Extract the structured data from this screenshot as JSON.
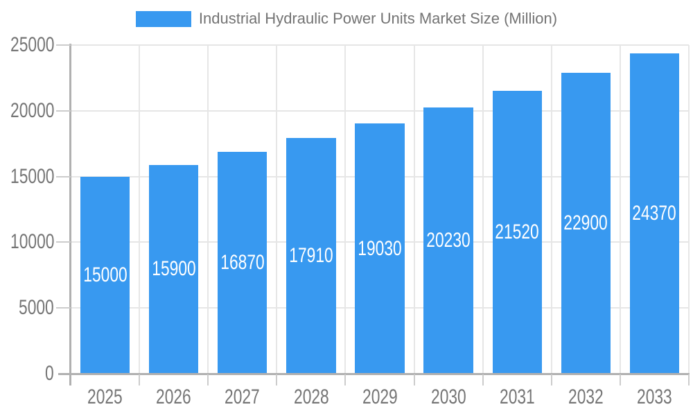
{
  "legend": {
    "swatch_color": "#3899F0",
    "label": "Industrial Hydraulic Power Units Market Size (Million)"
  },
  "chart_data": {
    "type": "bar",
    "title": "Industrial Hydraulic Power Units Market Size (Million)",
    "categories": [
      "2025",
      "2026",
      "2027",
      "2028",
      "2029",
      "2030",
      "2031",
      "2032",
      "2033"
    ],
    "values": [
      15000,
      15900,
      16870,
      17910,
      19030,
      20230,
      21520,
      22900,
      24370
    ],
    "value_labels": [
      "15000",
      "15900",
      "16870",
      "17910",
      "19030",
      "20230",
      "21520",
      "22900",
      "24370"
    ],
    "xlabel": "",
    "ylabel": "",
    "ylim": [
      0,
      25000
    ],
    "yticks": [
      0,
      5000,
      10000,
      15000,
      20000,
      25000
    ],
    "grid": "horizontal and vertical gridlines on",
    "legend_position": "top-center",
    "value_label_position": "centered inside bar",
    "colors": {
      "bar": "#3899F0",
      "value_label": "#ffffff",
      "axis_line": "#b0b0b0",
      "gridline": "#e6e6e6",
      "tick": "#cccccc",
      "tick_label": "#757575",
      "legend_label": "#737373",
      "background": "#ffffff"
    }
  }
}
